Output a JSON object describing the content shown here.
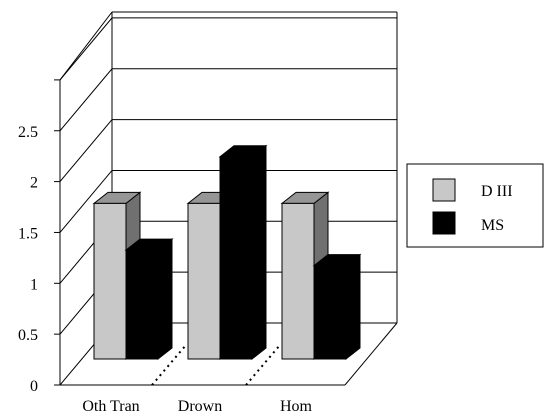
{
  "chart_data": {
    "type": "bar",
    "categories": [
      "Oth Tran",
      "Drown",
      "Hom"
    ],
    "series": [
      {
        "name": "D III",
        "values": [
          2.0,
          2.0,
          2.0
        ],
        "color": "#c8c8c8",
        "top_color": "#969696",
        "side_color": "#707070"
      },
      {
        "name": "MS",
        "values": [
          1.4,
          2.6,
          1.2
        ],
        "color": "#000000",
        "top_color": "#000000",
        "side_color": "#000000"
      }
    ],
    "yticks": [
      "0",
      "0.5",
      "1",
      "1.5",
      "2",
      "2.5"
    ],
    "ylim": [
      0,
      3
    ],
    "grid": true,
    "legend_position": "right",
    "title": "",
    "xlabel": "",
    "ylabel": ""
  }
}
